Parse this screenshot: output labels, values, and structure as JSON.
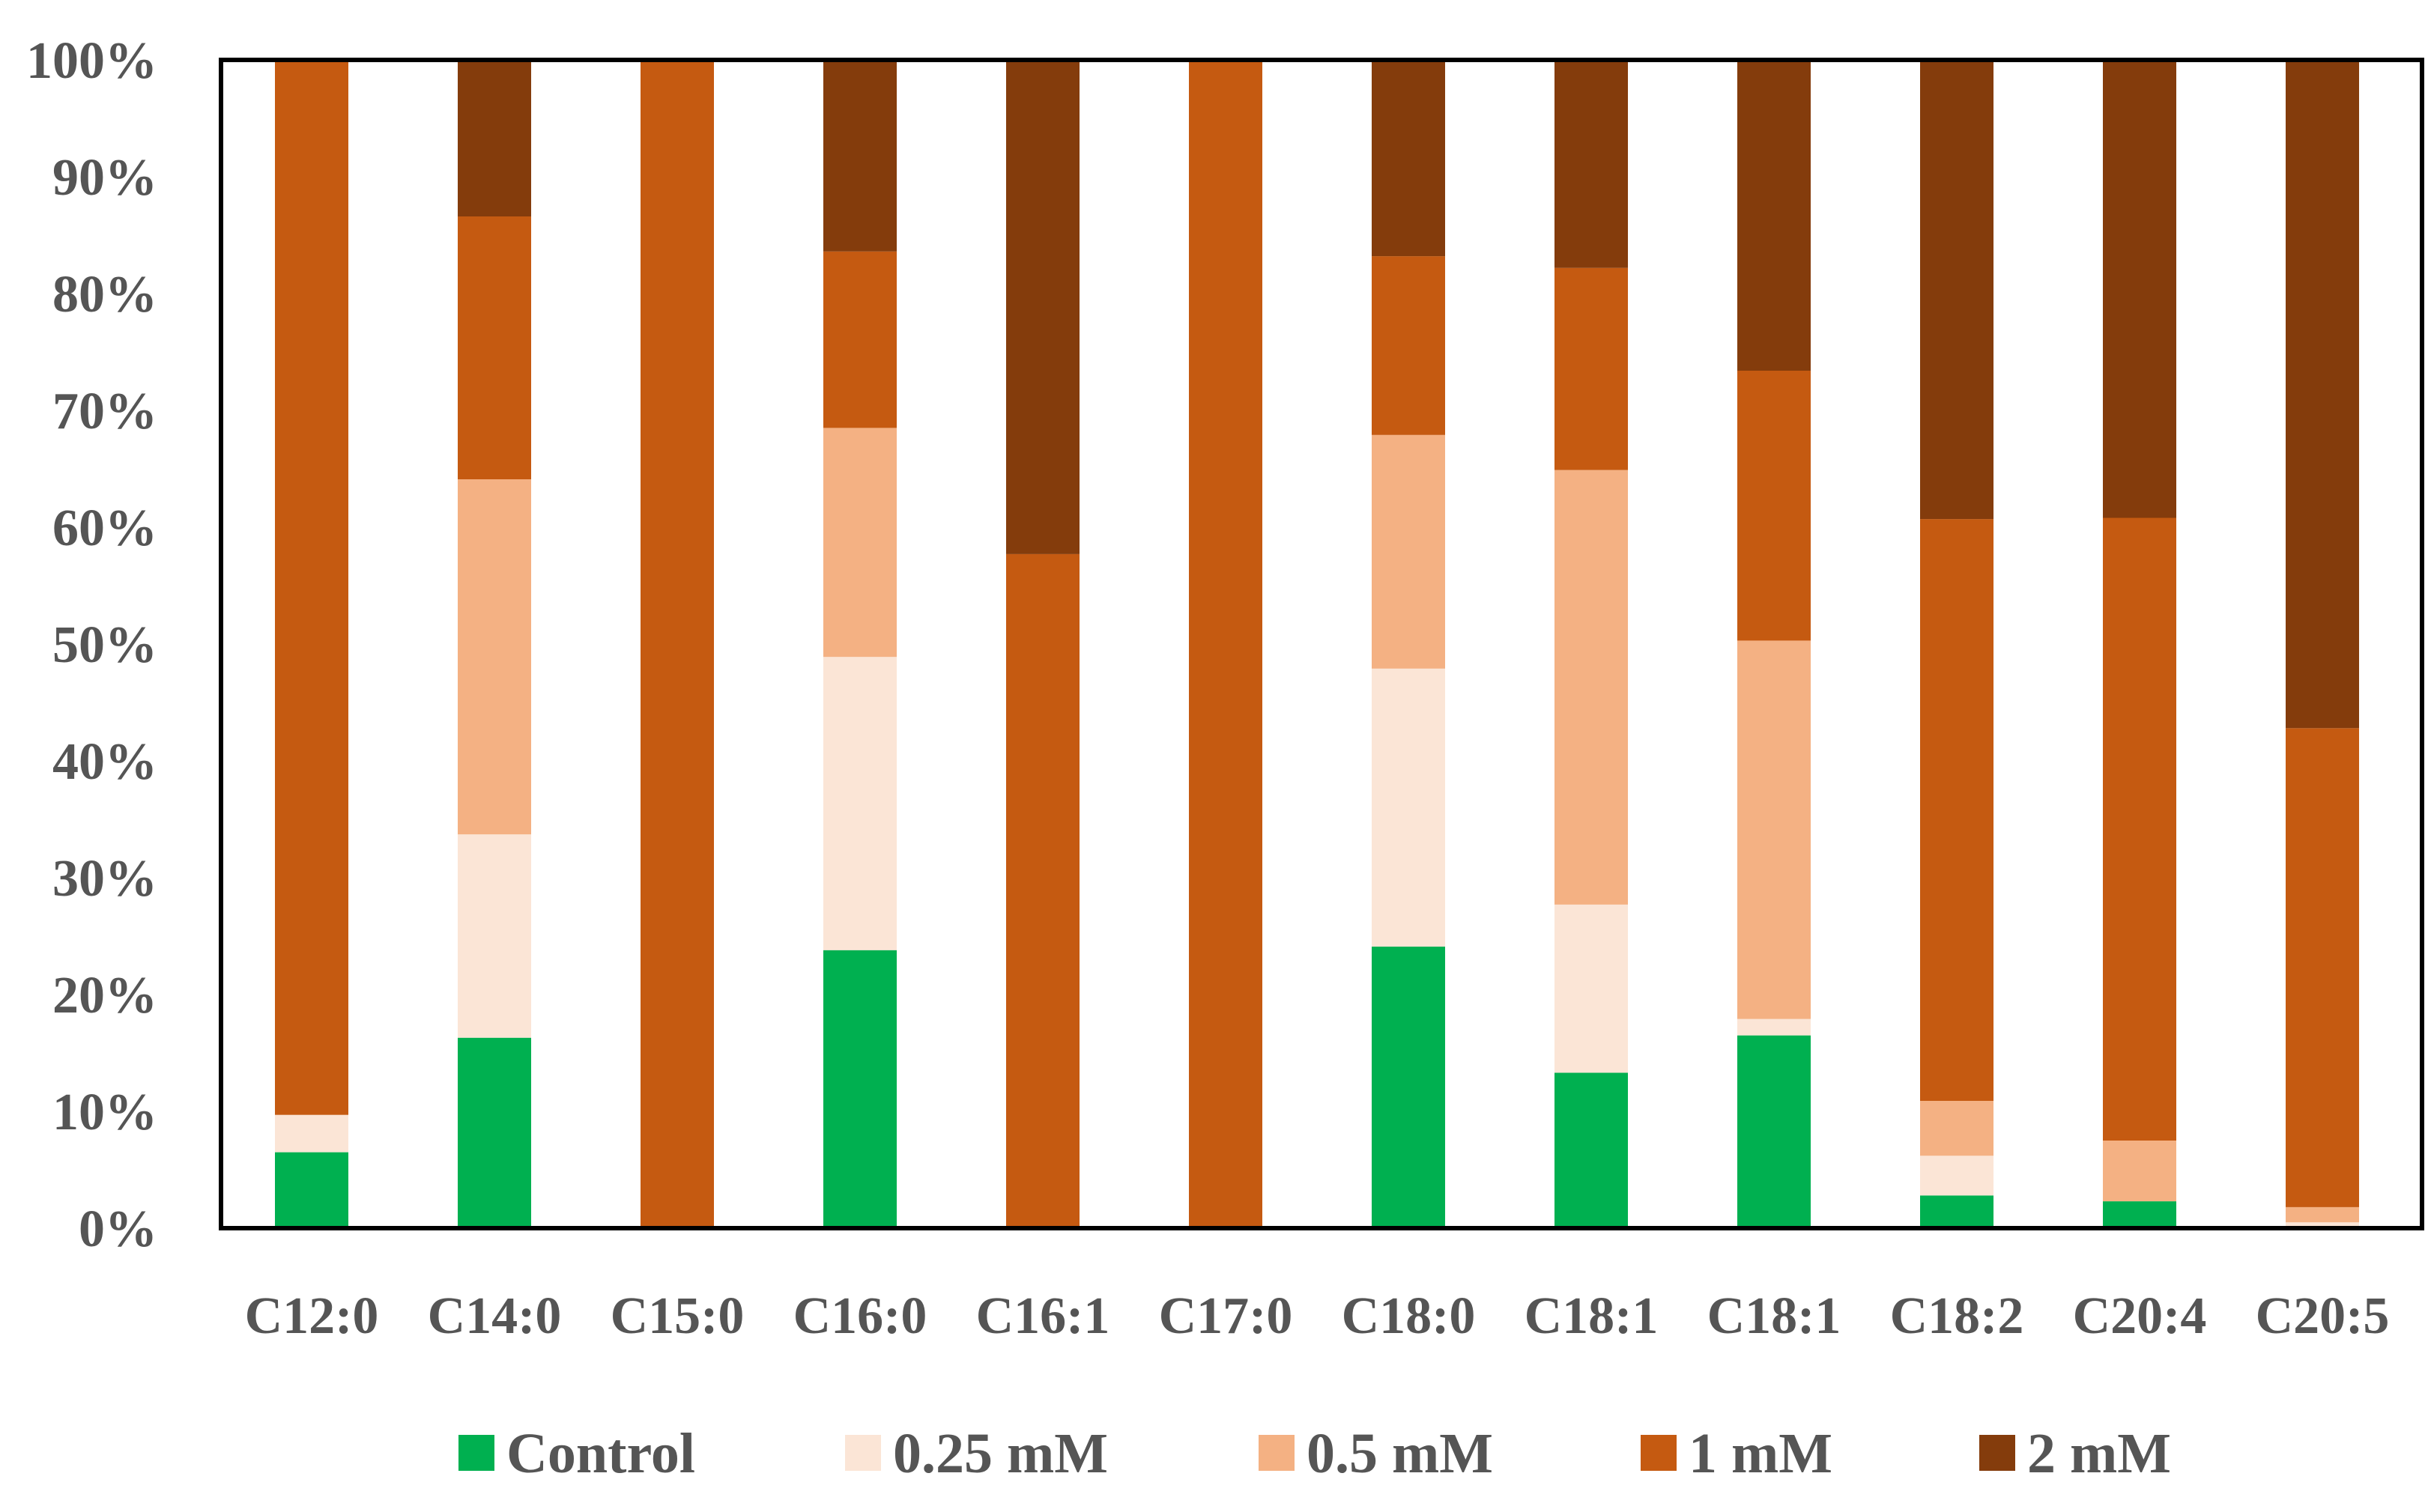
{
  "chart_data": {
    "type": "bar",
    "stacked": true,
    "percent": true,
    "title": "",
    "xlabel": "",
    "ylabel": "",
    "ylim": [
      0,
      100
    ],
    "yticks": [
      "0%",
      "10%",
      "20%",
      "30%",
      "40%",
      "50%",
      "60%",
      "70%",
      "80%",
      "90%",
      "100%"
    ],
    "categories": [
      "C12:0",
      "C14:0",
      "C15:0",
      "C16:0",
      "C16:1",
      "C17:0",
      "C18:0",
      "C18:1",
      "C18:1",
      "C18:2",
      "C20:4",
      "C20:5"
    ],
    "series": [
      {
        "name": "Control",
        "color": "#00b050",
        "values": [
          6.5,
          16.3,
          0,
          23.8,
          0,
          0,
          24.1,
          13.3,
          16.5,
          2.8,
          2.3,
          0
        ]
      },
      {
        "name": "0.25 mM",
        "color": "#fbe5d6",
        "values": [
          3.2,
          17.4,
          0,
          25.1,
          0,
          0,
          23.8,
          14.4,
          1.4,
          3.4,
          0,
          0.5
        ]
      },
      {
        "name": "0.5 mM",
        "color": "#f4b183",
        "values": [
          0,
          30.4,
          0,
          19.6,
          0,
          0,
          20.0,
          37.2,
          32.4,
          4.7,
          5.2,
          1.3
        ]
      },
      {
        "name": "1 mM",
        "color": "#c55a11",
        "values": [
          90.3,
          22.5,
          100,
          15.1,
          57.7,
          100,
          15.3,
          17.3,
          23.1,
          49.8,
          53.3,
          41.0
        ]
      },
      {
        "name": "2 mM",
        "color": "#843c0c",
        "values": [
          0,
          13.4,
          0,
          16.4,
          42.3,
          0,
          16.8,
          17.8,
          26.6,
          39.3,
          39.2,
          57.2
        ]
      }
    ],
    "legend_position": "bottom",
    "grid": false
  }
}
